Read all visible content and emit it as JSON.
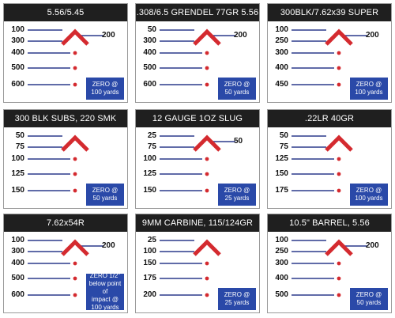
{
  "colors": {
    "header_bg": "#1f1f1f",
    "line": "#2b3a8c",
    "chevron": "#d42a2f",
    "dot": "#d42a2f",
    "zero_box": "#2a49a8"
  },
  "cards": [
    {
      "title": "5.56/5.45",
      "rows": [
        "100",
        "300",
        "400",
        "500",
        "600"
      ],
      "side_label": "200",
      "zero_lines": [
        "ZERO @",
        "100 yards"
      ]
    },
    {
      "title": ".308/6.5 GRENDEL 77GR 5.56",
      "rows": [
        "50",
        "300",
        "400",
        "500",
        "600"
      ],
      "side_label": "200",
      "zero_lines": [
        "ZERO @",
        "50 yards"
      ]
    },
    {
      "title": "300BLK/7.62x39 SUPER",
      "rows": [
        "100",
        "250",
        "300",
        "400",
        "450"
      ],
      "side_label": "200",
      "zero_lines": [
        "ZERO @",
        "100 yards"
      ]
    },
    {
      "title": "300 BLK SUBS, 220 SMK",
      "rows": [
        "50",
        "75",
        "100",
        "125",
        "150"
      ],
      "side_label": "",
      "zero_lines": [
        "ZERO @",
        "50 yards"
      ]
    },
    {
      "title": "12 GAUGE 1OZ SLUG",
      "rows": [
        "25",
        "75",
        "100",
        "125",
        "150"
      ],
      "side_label": "50",
      "zero_lines": [
        "ZERO @",
        "25 yards"
      ]
    },
    {
      "title": ".22LR 40GR",
      "rows": [
        "50",
        "75",
        "125",
        "150",
        "175"
      ],
      "side_label": "",
      "zero_lines": [
        "ZERO @",
        "100 yards"
      ]
    },
    {
      "title": "7.62x54R",
      "rows": [
        "100",
        "300",
        "400",
        "500",
        "600"
      ],
      "side_label": "200",
      "zero_lines": [
        "ZERO 1/2\"",
        "below point of",
        "impact @",
        "100 yards"
      ]
    },
    {
      "title": "9MM CARBINE, 115/124GR",
      "rows": [
        "25",
        "100",
        "150",
        "175",
        "200"
      ],
      "side_label": "",
      "zero_lines": [
        "ZERO @",
        "25 yards"
      ]
    },
    {
      "title": "10.5\" BARREL, 5.56",
      "rows": [
        "100",
        "250",
        "300",
        "400",
        "500"
      ],
      "side_label": "200",
      "zero_lines": [
        "ZERO @",
        "50 yards"
      ]
    }
  ]
}
